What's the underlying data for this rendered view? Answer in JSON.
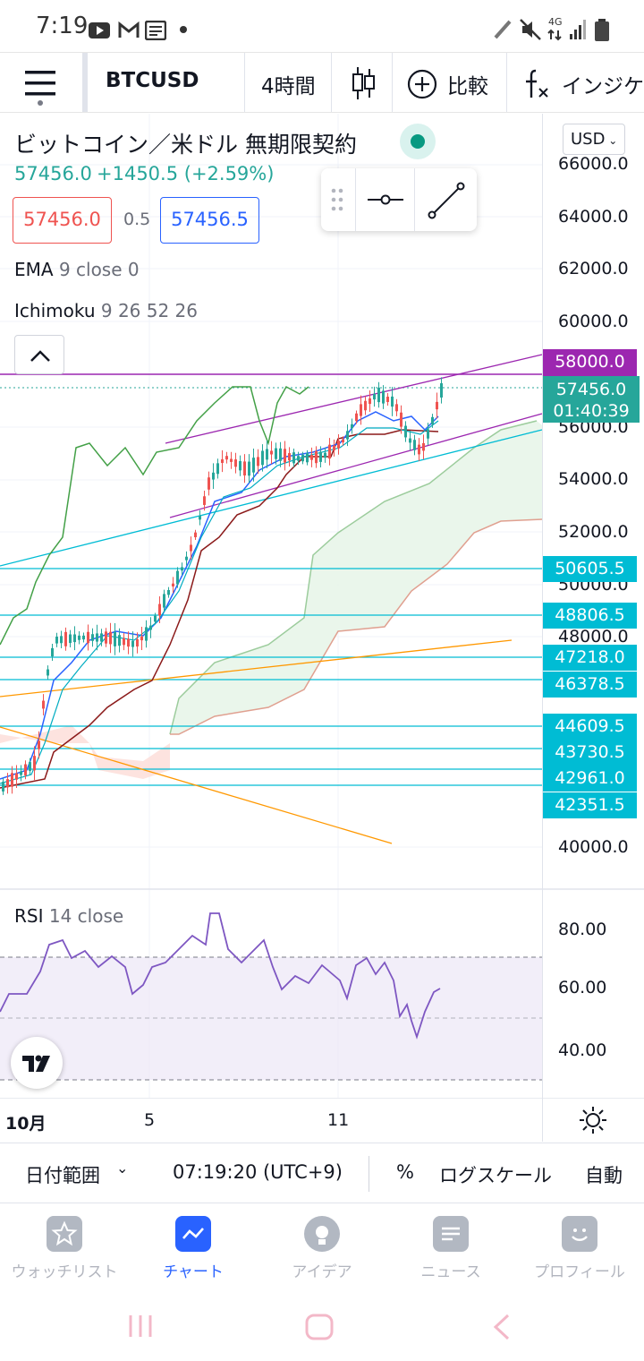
{
  "status": {
    "time": "7:19",
    "network": "4G"
  },
  "toolbar": {
    "symbol": "BTCUSD",
    "interval": "4時間",
    "compare_label": "比較",
    "indicator_label": "インジケ"
  },
  "legend": {
    "title": "ビットコイン／米ドル 無期限契約",
    "last_price": "57456.0",
    "change": "+1450.5 (+2.59%)",
    "bid": "57456.0",
    "spread": "0.5",
    "ask": "57456.5",
    "ema_name": "EMA",
    "ema_params": "9 close 0",
    "ichimoku_name": "Ichimoku",
    "ichimoku_params": "9 26 52 26"
  },
  "currency": "USD",
  "price_axis": {
    "ticks": [
      "66000.0",
      "64000.0",
      "62000.0",
      "60000.0",
      "56000.0",
      "54000.0",
      "52000.0",
      "50000.0",
      "48000.0",
      "40000.0"
    ],
    "badges": {
      "alert_58000": "58000.0",
      "last": "57456.0",
      "countdown": "01:40:39",
      "lvl1": "50605.5",
      "lvl2": "48806.5",
      "lvl3": "47218.0",
      "lvl4": "46378.5",
      "lvl5": "44609.5",
      "lvl6": "43730.5",
      "lvl7": "42961.0",
      "lvl8": "42351.5"
    }
  },
  "rsi": {
    "name": "RSI",
    "params": "14 close",
    "ticks": [
      "80.00",
      "60.00",
      "40.00"
    ]
  },
  "time_axis": {
    "labels": [
      "10月",
      "5",
      "11"
    ]
  },
  "bottombar": {
    "date_range": "日付範囲",
    "clock": "07:19:20 (UTC+9)",
    "percent": "%",
    "log_scale": "ログスケール",
    "auto": "自動"
  },
  "nav": {
    "watchlist": "ウォッチリスト",
    "chart": "チャート",
    "ideas": "アイデア",
    "news": "ニュース",
    "profile": "プロフィール"
  },
  "colors": {
    "accent": "#2962ff",
    "up": "#26a69a",
    "down": "#ef5350",
    "level": "#00bcd4",
    "channel": "#9c27b0"
  }
}
